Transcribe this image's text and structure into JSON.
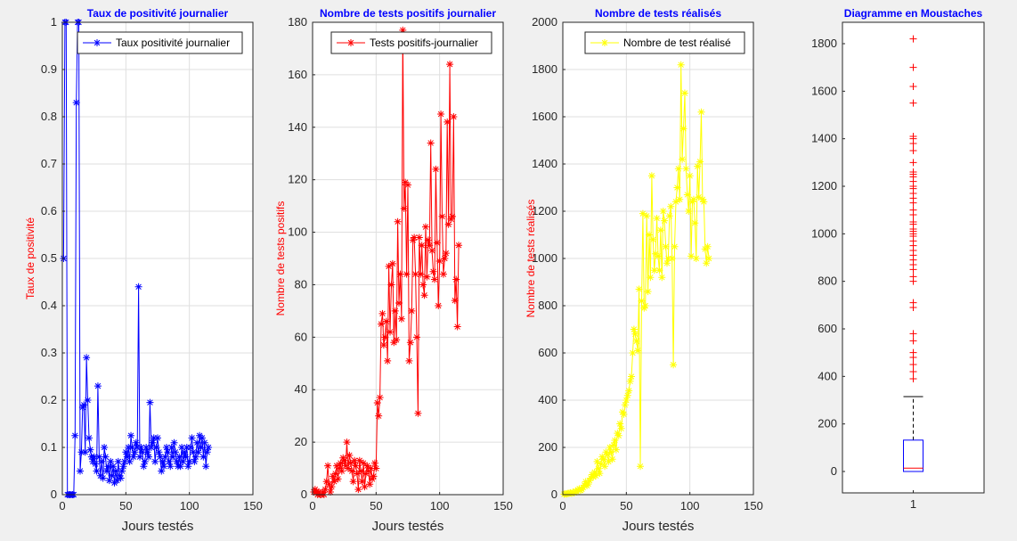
{
  "figure": {
    "background": "#f0f0f0"
  },
  "chart_data": [
    {
      "type": "line",
      "marker": "*",
      "title": "Taux de positivité journalier",
      "title_color": "#0000ff",
      "xlabel": "Jours testés",
      "ylabel": "Taux de positivité",
      "ylabel_color": "#ff0000",
      "xlim": [
        0,
        150
      ],
      "ylim": [
        0,
        1
      ],
      "xticks": [
        0,
        50,
        100,
        150
      ],
      "yticks": [
        0,
        0.1,
        0.2,
        0.3,
        0.4,
        0.5,
        0.6,
        0.7,
        0.8,
        0.9,
        1
      ],
      "grid": true,
      "legend_location": "top-right",
      "series": [
        {
          "name": "Taux positivité journalier",
          "color": "#0000ff",
          "x": [
            1,
            2,
            3,
            4,
            5,
            6,
            7,
            8,
            9,
            10,
            11,
            12,
            13,
            14,
            15,
            16,
            17,
            18,
            19,
            20,
            21,
            22,
            23,
            24,
            25,
            26,
            27,
            28,
            29,
            30,
            31,
            32,
            33,
            34,
            35,
            36,
            37,
            38,
            39,
            40,
            41,
            42,
            43,
            44,
            45,
            46,
            47,
            48,
            49,
            50,
            51,
            52,
            53,
            54,
            55,
            56,
            57,
            58,
            59,
            60,
            61,
            62,
            63,
            64,
            65,
            66,
            67,
            68,
            69,
            70,
            71,
            72,
            73,
            74,
            75,
            76,
            77,
            78,
            79,
            80,
            81,
            82,
            83,
            84,
            85,
            86,
            87,
            88,
            89,
            90,
            91,
            92,
            93,
            94,
            95,
            96,
            97,
            98,
            99,
            100,
            101,
            102,
            103,
            104,
            105,
            106,
            107,
            108,
            109,
            110,
            111,
            112,
            113,
            114,
            115
          ],
          "y": [
            0.5,
            1,
            1,
            0,
            0,
            0,
            0,
            0,
            0,
            0.125,
            0.83,
            1,
            1,
            0.05,
            0.09,
            0.185,
            0.19,
            0.09,
            0.29,
            0.2,
            0.12,
            0.095,
            0.08,
            0.07,
            0.08,
            0.065,
            0.05,
            0.23,
            0.08,
            0.04,
            0.07,
            0.035,
            0.1,
            0.08,
            0.05,
            0.06,
            0.03,
            0.07,
            0.04,
            0.06,
            0.025,
            0.05,
            0.03,
            0.07,
            0.04,
            0.035,
            0.05,
            0.06,
            0.07,
            0.09,
            0.08,
            0.1,
            0.07,
            0.125,
            0.1,
            0.08,
            0.09,
            0.11,
            0.1,
            0.44,
            0.08,
            0.1,
            0.09,
            0.06,
            0.07,
            0.1,
            0.09,
            0.08,
            0.195,
            0.1,
            0.11,
            0.12,
            0.07,
            0.1,
            0.12,
            0.09,
            0.08,
            0.05,
            0.07,
            0.06,
            0.08,
            0.1,
            0.09,
            0.07,
            0.06,
            0.1,
            0.08,
            0.11,
            0.09,
            0.07,
            0.06,
            0.08,
            0.06,
            0.1,
            0.07,
            0.09,
            0.08,
            0.1,
            0.06,
            0.07,
            0.1,
            0.12,
            0.09,
            0.07,
            0.08,
            0.11,
            0.09,
            0.125,
            0.1,
            0.12,
            0.08,
            0.11,
            0.06,
            0.09,
            0.1
          ]
        }
      ]
    },
    {
      "type": "line",
      "marker": "*",
      "title": "Nombre de tests positifs journalier",
      "title_color": "#0000ff",
      "xlabel": "Jours testés",
      "ylabel": "Nombre de tests positifs",
      "ylabel_color": "#ff0000",
      "xlim": [
        0,
        150
      ],
      "ylim": [
        0,
        180
      ],
      "xticks": [
        0,
        50,
        100,
        150
      ],
      "yticks": [
        0,
        20,
        40,
        60,
        80,
        100,
        120,
        140,
        160,
        180
      ],
      "grid": true,
      "legend_location": "top-right",
      "series": [
        {
          "name": "Tests positifs-journalier",
          "color": "#ff0000",
          "x": [
            1,
            2,
            3,
            4,
            5,
            6,
            7,
            8,
            9,
            10,
            11,
            12,
            13,
            14,
            15,
            16,
            17,
            18,
            19,
            20,
            21,
            22,
            23,
            24,
            25,
            26,
            27,
            28,
            29,
            30,
            31,
            32,
            33,
            34,
            35,
            36,
            37,
            38,
            39,
            40,
            41,
            42,
            43,
            44,
            45,
            46,
            47,
            48,
            49,
            50,
            51,
            52,
            53,
            54,
            55,
            56,
            57,
            58,
            59,
            60,
            61,
            62,
            63,
            64,
            65,
            66,
            67,
            68,
            69,
            70,
            71,
            72,
            73,
            74,
            75,
            76,
            77,
            78,
            79,
            80,
            81,
            82,
            83,
            84,
            85,
            86,
            87,
            88,
            89,
            90,
            91,
            92,
            93,
            94,
            95,
            96,
            97,
            98,
            99,
            100,
            101,
            102,
            103,
            104,
            105,
            106,
            107,
            108,
            109,
            110,
            111,
            112,
            113,
            114,
            115
          ],
          "y": [
            1,
            2,
            1,
            0,
            1,
            0,
            0,
            1,
            0,
            2,
            5,
            11,
            4,
            1,
            3,
            7,
            5,
            8,
            11,
            6,
            10,
            12,
            9,
            14,
            13,
            11,
            20,
            10,
            15,
            12,
            9,
            5,
            13,
            11,
            8,
            2,
            13,
            9,
            5,
            12,
            3,
            8,
            11,
            9,
            4,
            10,
            6,
            7,
            12,
            10,
            35,
            30,
            37,
            65,
            69,
            57,
            60,
            66,
            51,
            87,
            62,
            80,
            88,
            58,
            70,
            59,
            104,
            73,
            84,
            67,
            177,
            109,
            119,
            84,
            118,
            51,
            58,
            70,
            97,
            98,
            84,
            60,
            31,
            98,
            84,
            95,
            80,
            76,
            102,
            83,
            97,
            95,
            134,
            93,
            85,
            82,
            124,
            96,
            72,
            89,
            145,
            106,
            84,
            90,
            92,
            142,
            103,
            164,
            105,
            106,
            144,
            74,
            82,
            64,
            95
          ]
        }
      ]
    },
    {
      "type": "line",
      "marker": "*",
      "title": "Nombre de tests réalisés",
      "title_color": "#0000ff",
      "xlabel": "Jours testés",
      "ylabel": "Nombre de tests réalisés",
      "ylabel_color": "#ff0000",
      "xlim": [
        0,
        150
      ],
      "ylim": [
        0,
        2000
      ],
      "xticks": [
        0,
        50,
        100,
        150
      ],
      "yticks": [
        0,
        200,
        400,
        600,
        800,
        1000,
        1200,
        1400,
        1600,
        1800,
        2000
      ],
      "grid": true,
      "legend_location": "top-right",
      "series": [
        {
          "name": "Nombre de test réalisé",
          "color": "#ffff00",
          "x": [
            1,
            2,
            3,
            4,
            5,
            6,
            7,
            8,
            9,
            10,
            11,
            12,
            13,
            14,
            15,
            16,
            17,
            18,
            19,
            20,
            21,
            22,
            23,
            24,
            25,
            26,
            27,
            28,
            29,
            30,
            31,
            32,
            33,
            34,
            35,
            36,
            37,
            38,
            39,
            40,
            41,
            42,
            43,
            44,
            45,
            46,
            47,
            48,
            49,
            50,
            51,
            52,
            53,
            54,
            55,
            56,
            57,
            58,
            59,
            60,
            61,
            62,
            63,
            64,
            65,
            66,
            67,
            68,
            69,
            70,
            71,
            72,
            73,
            74,
            75,
            76,
            77,
            78,
            79,
            80,
            81,
            82,
            83,
            84,
            85,
            86,
            87,
            88,
            89,
            90,
            91,
            92,
            93,
            94,
            95,
            96,
            97,
            98,
            99,
            100,
            101,
            102,
            103,
            104,
            105,
            106,
            107,
            108,
            109,
            110,
            111,
            112,
            113,
            114,
            115
          ],
          "y": [
            2,
            4,
            3,
            5,
            6,
            8,
            5,
            10,
            8,
            15,
            12,
            20,
            25,
            18,
            22,
            30,
            40,
            55,
            38,
            45,
            60,
            70,
            85,
            75,
            95,
            80,
            140,
            110,
            90,
            130,
            160,
            150,
            120,
            180,
            170,
            140,
            200,
            180,
            150,
            210,
            230,
            190,
            260,
            250,
            300,
            280,
            350,
            340,
            380,
            400,
            420,
            440,
            480,
            500,
            600,
            700,
            680,
            650,
            610,
            870,
            120,
            820,
            1190,
            790,
            800,
            1180,
            860,
            1100,
            920,
            1350,
            1080,
            950,
            1020,
            1170,
            1010,
            950,
            1120,
            920,
            1200,
            1160,
            1050,
            980,
            1000,
            1180,
            1220,
            1000,
            550,
            1050,
            1240,
            1300,
            1380,
            1250,
            1820,
            1420,
            1550,
            1700,
            1380,
            1270,
            1200,
            1350,
            1010,
            1240,
            1250,
            1150,
            1000,
            1390,
            1260,
            1410,
            1620,
            1250,
            1240,
            1040,
            980,
            1050,
            1000
          ]
        }
      ]
    },
    {
      "type": "box",
      "title": "Diagramme en Moustaches",
      "title_color": "#0000ff",
      "xlim": [
        0.5,
        1.5
      ],
      "ylim": [
        -90,
        1890
      ],
      "xticks": [
        1
      ],
      "yticks": [
        0,
        200,
        400,
        600,
        800,
        1000,
        1200,
        1400,
        1600,
        1800
      ],
      "grid": false,
      "box_color": "#0000ff",
      "median_color": "#ff0000",
      "whisker_color": "#000000",
      "outlier_color": "#ff0000",
      "stats": {
        "min": 0,
        "q1": 0,
        "median": 14,
        "q3": 132,
        "max": 315
      },
      "outliers": [
        390,
        420,
        450,
        480,
        500,
        550,
        580,
        690,
        710,
        800,
        820,
        850,
        870,
        890,
        910,
        930,
        950,
        970,
        990,
        1000,
        1010,
        1020,
        1040,
        1050,
        1080,
        1100,
        1130,
        1150,
        1170,
        1190,
        1200,
        1220,
        1240,
        1250,
        1260,
        1300,
        1350,
        1380,
        1400,
        1410,
        1550,
        1620,
        1700,
        1820
      ]
    }
  ]
}
